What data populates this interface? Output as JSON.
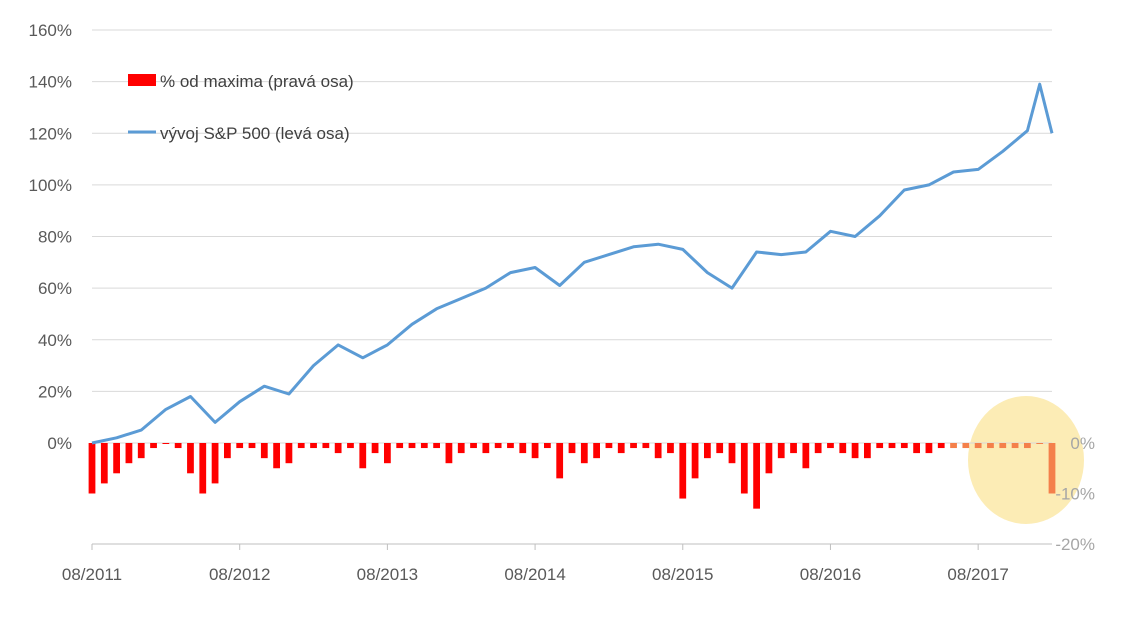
{
  "chart_data": {
    "type": "line",
    "title": "",
    "x_tick_labels": [
      "08/2011",
      "08/2012",
      "08/2013",
      "08/2014",
      "08/2015",
      "08/2016",
      "08/2017"
    ],
    "x_range": [
      "2011-08",
      "2018-02"
    ],
    "left_axis": {
      "ticks": [
        "160%",
        "140%",
        "120%",
        "100%",
        "80%",
        "60%",
        "40%",
        "20%",
        "0%"
      ],
      "range": [
        -40,
        160
      ]
    },
    "right_axis": {
      "ticks": [
        "0%",
        "-10%",
        "-20%"
      ],
      "range": [
        -20,
        0
      ],
      "color": "#a6a6a6"
    },
    "grid": true,
    "legend": {
      "placement": "top-left",
      "entries": [
        {
          "label": "% od maxima (pravá osa)",
          "color": "#ff0000",
          "kind": "bar"
        },
        {
          "label": "vývoj S&P 500 (levá osa)",
          "color": "#5b9bd5",
          "kind": "line"
        }
      ]
    },
    "highlight": {
      "color": "#fce9a8",
      "around": "2017-12 to 2018-02"
    },
    "series": [
      {
        "name": "vývoj S&P 500 (levá osa)",
        "axis": "left",
        "color": "#5b9bd5",
        "x": [
          "2011-08",
          "2011-10",
          "2011-12",
          "2012-02",
          "2012-04",
          "2012-06",
          "2012-08",
          "2012-10",
          "2012-12",
          "2013-02",
          "2013-04",
          "2013-06",
          "2013-08",
          "2013-10",
          "2013-12",
          "2014-02",
          "2014-04",
          "2014-06",
          "2014-08",
          "2014-10",
          "2014-12",
          "2015-02",
          "2015-04",
          "2015-06",
          "2015-08",
          "2015-10",
          "2015-12",
          "2016-02",
          "2016-04",
          "2016-06",
          "2016-08",
          "2016-10",
          "2016-12",
          "2017-02",
          "2017-04",
          "2017-06",
          "2017-08",
          "2017-10",
          "2017-12",
          "2018-01",
          "2018-02"
        ],
        "values": [
          0,
          2,
          5,
          13,
          18,
          8,
          16,
          22,
          19,
          30,
          38,
          33,
          38,
          46,
          52,
          56,
          60,
          66,
          68,
          61,
          70,
          73,
          76,
          77,
          75,
          66,
          60,
          74,
          73,
          74,
          82,
          80,
          88,
          98,
          100,
          105,
          106,
          113,
          121,
          139,
          120
        ]
      },
      {
        "name": "% od maxima (pravá osa)",
        "axis": "right",
        "color": "#ff0000",
        "x": [
          "2011-08",
          "2011-09",
          "2011-10",
          "2011-11",
          "2011-12",
          "2012-01",
          "2012-02",
          "2012-03",
          "2012-04",
          "2012-05",
          "2012-06",
          "2012-07",
          "2012-08",
          "2012-09",
          "2012-10",
          "2012-11",
          "2012-12",
          "2013-01",
          "2013-02",
          "2013-03",
          "2013-04",
          "2013-05",
          "2013-06",
          "2013-07",
          "2013-08",
          "2013-09",
          "2013-10",
          "2013-11",
          "2013-12",
          "2014-01",
          "2014-02",
          "2014-03",
          "2014-04",
          "2014-05",
          "2014-06",
          "2014-07",
          "2014-08",
          "2014-09",
          "2014-10",
          "2014-11",
          "2014-12",
          "2015-01",
          "2015-02",
          "2015-03",
          "2015-04",
          "2015-05",
          "2015-06",
          "2015-07",
          "2015-08",
          "2015-09",
          "2015-10",
          "2015-11",
          "2015-12",
          "2016-01",
          "2016-02",
          "2016-03",
          "2016-04",
          "2016-05",
          "2016-06",
          "2016-07",
          "2016-08",
          "2016-09",
          "2016-10",
          "2016-11",
          "2016-12",
          "2017-01",
          "2017-02",
          "2017-03",
          "2017-04",
          "2017-05",
          "2017-06",
          "2017-07",
          "2017-08",
          "2017-09",
          "2017-10",
          "2017-11",
          "2017-12",
          "2018-01",
          "2018-02"
        ],
        "values": [
          -10,
          -8,
          -6,
          -4,
          -3,
          -1,
          0,
          -1,
          -6,
          -10,
          -8,
          -3,
          -1,
          -1,
          -3,
          -5,
          -4,
          -1,
          -1,
          -1,
          -2,
          -1,
          -5,
          -2,
          -4,
          -1,
          -1,
          -1,
          -1,
          -4,
          -2,
          -1,
          -2,
          -1,
          -1,
          -2,
          -3,
          -1,
          -7,
          -2,
          -4,
          -3,
          -1,
          -2,
          -1,
          -1,
          -3,
          -2,
          -11,
          -7,
          -3,
          -2,
          -4,
          -10,
          -13,
          -6,
          -3,
          -2,
          -5,
          -2,
          -1,
          -2,
          -3,
          -3,
          -1,
          -1,
          -1,
          -2,
          -2,
          -1,
          -1,
          -1,
          -1,
          -1,
          -1,
          -1,
          -1,
          0,
          -10
        ]
      }
    ]
  }
}
